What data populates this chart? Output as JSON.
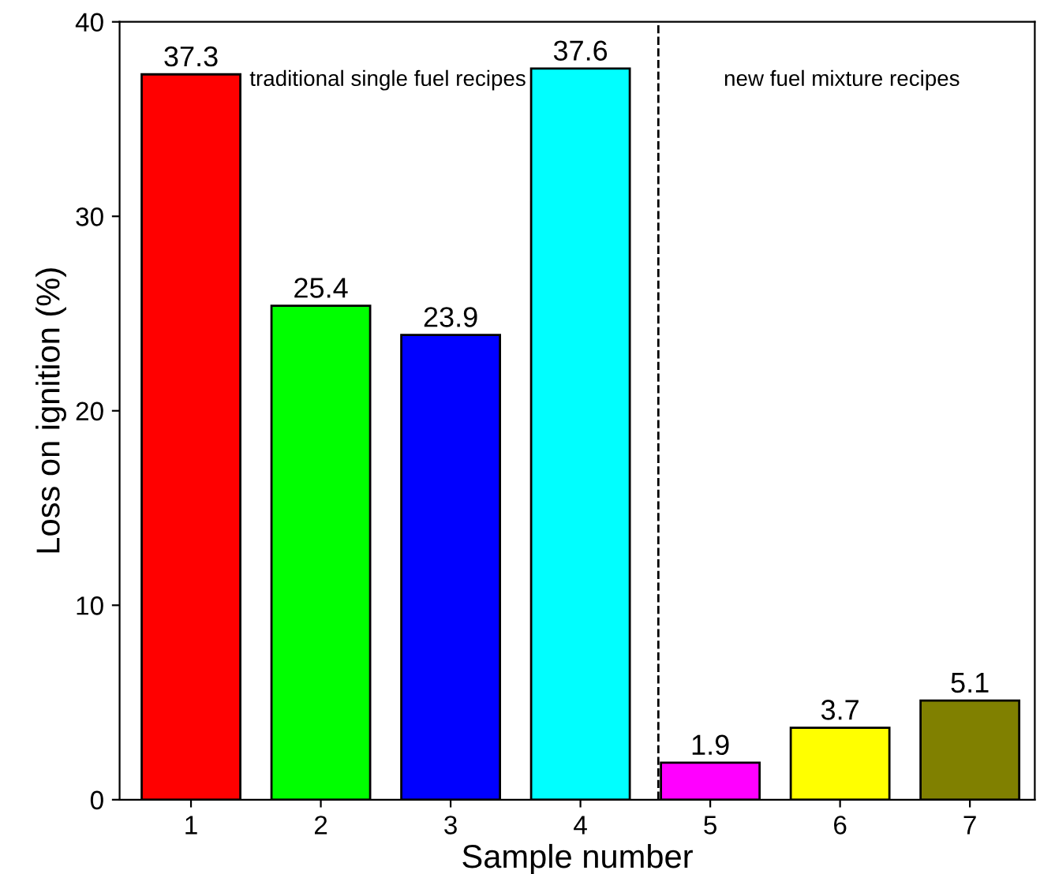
{
  "chart_data": {
    "type": "bar",
    "xlabel": "Sample number",
    "ylabel": "Loss on ignition (%)",
    "x": [
      1,
      2,
      3,
      4,
      5,
      6,
      7
    ],
    "values": [
      37.3,
      25.4,
      23.9,
      37.6,
      1.9,
      3.7,
      5.1
    ],
    "colors": [
      "#ff0000",
      "#00ff00",
      "#0000ff",
      "#00ffff",
      "#ff00ff",
      "#ffff00",
      "#808000"
    ],
    "data_labels": true,
    "xlim": [
      0.45,
      7.5
    ],
    "xticks": [
      1,
      2,
      3,
      4,
      5,
      6,
      7
    ],
    "ylim": [
      0,
      40
    ],
    "yticks": [
      0,
      10,
      20,
      30,
      40
    ],
    "grid": false,
    "legend": false,
    "ref_lines": [
      {
        "axis": "x",
        "value": 4.6,
        "label": null,
        "color": "#000000",
        "line_style": "dashed"
      }
    ],
    "annotations": [
      "traditional single fuel recipes",
      "new fuel mixture recipes"
    ]
  }
}
